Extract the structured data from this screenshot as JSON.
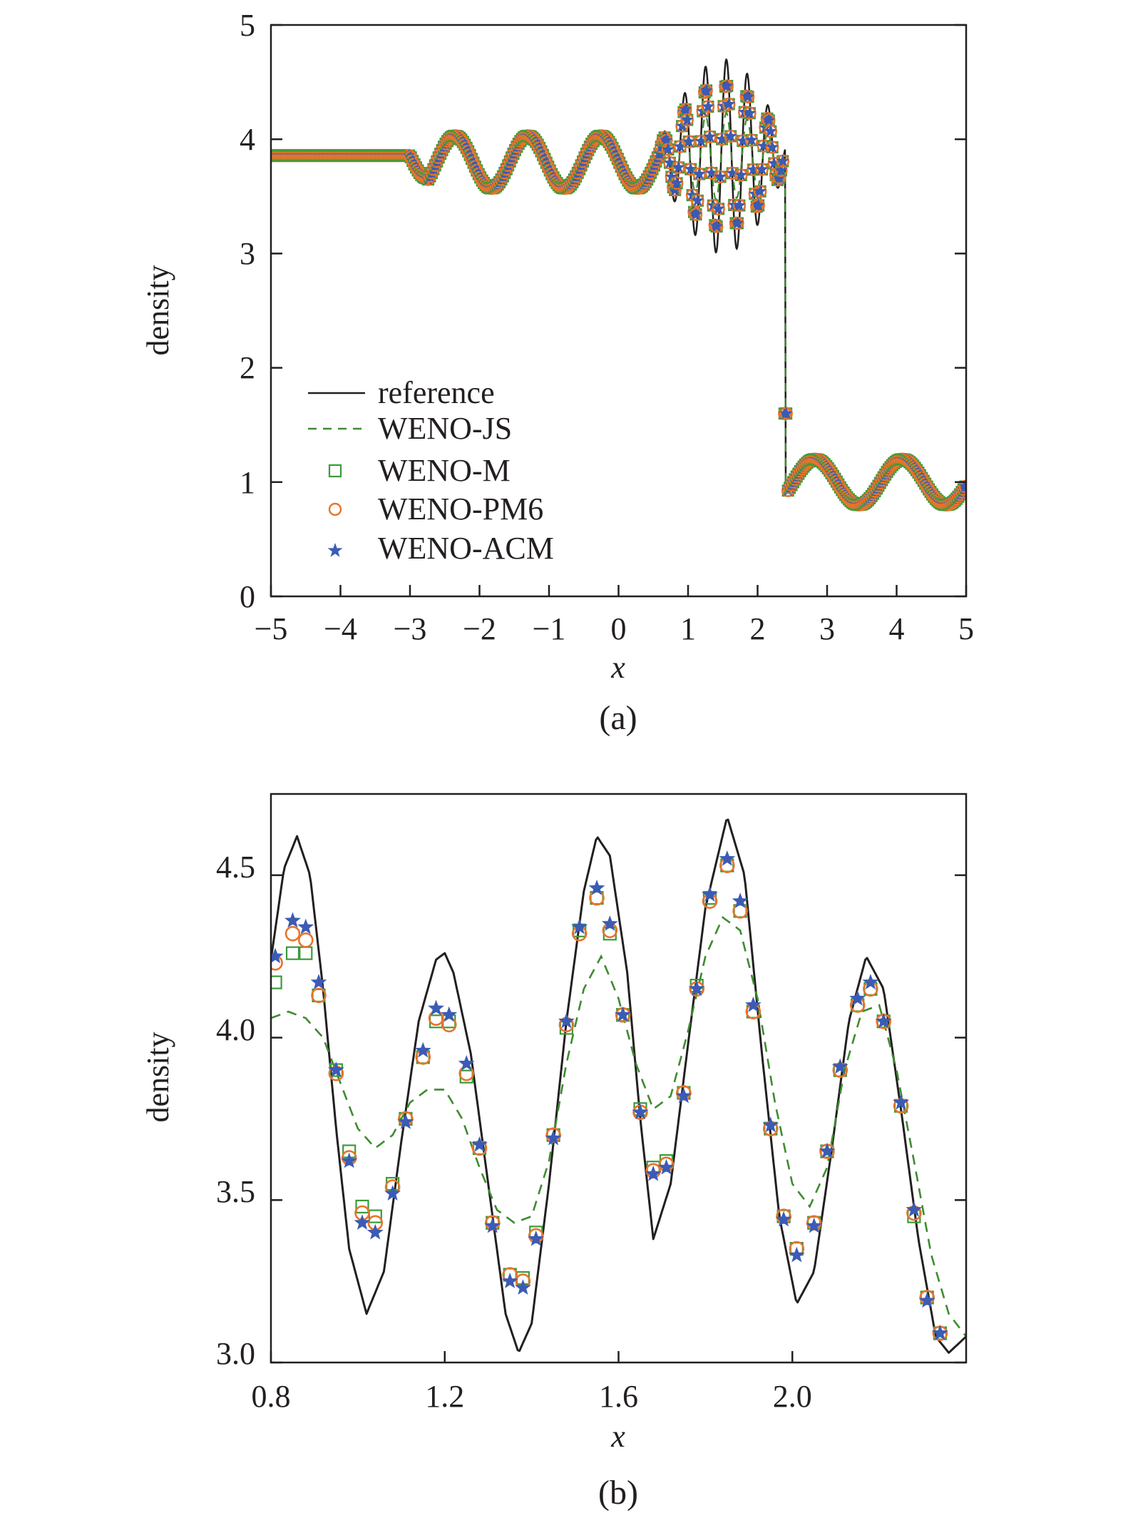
{
  "chart_data": [
    {
      "type": "line",
      "panel": "a",
      "caption": "(a)",
      "xlabel": "x",
      "ylabel": "density",
      "xlim": [
        -5,
        5
      ],
      "ylim": [
        0,
        5
      ],
      "xticks": [
        -5,
        -4,
        -3,
        -2,
        -1,
        0,
        1,
        2,
        3,
        4,
        5
      ],
      "xtick_labels": [
        "−5",
        "−4",
        "−3",
        "−2",
        "−1",
        "0",
        "1",
        "2",
        "3",
        "4",
        "5"
      ],
      "yticks": [
        0,
        1,
        2,
        3,
        4,
        5
      ],
      "ytick_labels": [
        "0",
        "1",
        "2",
        "3",
        "4",
        "5"
      ],
      "legend_position": "lower-left",
      "series": [
        {
          "name": "reference",
          "style": "solid-line",
          "color": "#231f20"
        },
        {
          "name": "WENO-JS",
          "style": "dashed-line",
          "color": "#3d8c2f"
        },
        {
          "name": "WENO-M",
          "style": "square-markers",
          "color": "#3a9b3a"
        },
        {
          "name": "WENO-PM6",
          "style": "circle-markers",
          "color": "#e8742a"
        },
        {
          "name": "WENO-ACM",
          "style": "star-markers",
          "color": "#3b5bb5"
        }
      ],
      "profile": {
        "left_state": 3.857,
        "shock_position": 2.4,
        "right_state_formula": "1 + 0.2*sin(5x)",
        "smooth_region": [
          -3,
          0.6
        ],
        "high_frequency_region": [
          0.6,
          2.4
        ]
      }
    },
    {
      "type": "line",
      "panel": "b",
      "caption": "(b)",
      "xlabel": "x",
      "ylabel": "density",
      "xlim": [
        0.8,
        2.4
      ],
      "ylim": [
        3.0,
        4.75
      ],
      "xticks": [
        0.8,
        1.2,
        1.6,
        2.0
      ],
      "xtick_labels": [
        "0.8",
        "1.2",
        "1.6",
        "2.0"
      ],
      "yticks": [
        3.0,
        3.5,
        4.0,
        4.5
      ],
      "ytick_labels": [
        "3.0",
        "3.5",
        "4.0",
        "4.5"
      ],
      "series": [
        {
          "name": "reference",
          "x": [
            0.8,
            0.83,
            0.86,
            0.89,
            0.92,
            0.95,
            0.98,
            1.02,
            1.06,
            1.1,
            1.14,
            1.18,
            1.2,
            1.22,
            1.26,
            1.3,
            1.34,
            1.37,
            1.4,
            1.44,
            1.48,
            1.52,
            1.55,
            1.58,
            1.62,
            1.65,
            1.68,
            1.72,
            1.76,
            1.8,
            1.85,
            1.89,
            1.93,
            1.97,
            2.01,
            2.05,
            2.09,
            2.13,
            2.17,
            2.21,
            2.25,
            2.29,
            2.33,
            2.36,
            2.4
          ],
          "y": [
            4.24,
            4.52,
            4.62,
            4.5,
            4.15,
            3.72,
            3.35,
            3.15,
            3.28,
            3.68,
            4.05,
            4.24,
            4.26,
            4.2,
            3.95,
            3.55,
            3.15,
            3.03,
            3.12,
            3.55,
            4.05,
            4.45,
            4.62,
            4.56,
            4.2,
            3.75,
            3.38,
            3.55,
            3.98,
            4.4,
            4.68,
            4.5,
            3.95,
            3.45,
            3.18,
            3.28,
            3.65,
            4.05,
            4.25,
            4.15,
            3.78,
            3.38,
            3.08,
            3.03,
            3.08
          ]
        },
        {
          "name": "WENO-JS",
          "x": [
            0.8,
            0.84,
            0.88,
            0.92,
            0.96,
            1.0,
            1.04,
            1.08,
            1.12,
            1.16,
            1.2,
            1.24,
            1.28,
            1.32,
            1.36,
            1.4,
            1.44,
            1.48,
            1.52,
            1.56,
            1.6,
            1.64,
            1.68,
            1.72,
            1.76,
            1.8,
            1.84,
            1.88,
            1.92,
            1.96,
            2.0,
            2.04,
            2.08,
            2.12,
            2.16,
            2.2,
            2.24,
            2.28,
            2.32,
            2.36,
            2.4
          ],
          "y": [
            4.06,
            4.08,
            4.06,
            4.0,
            3.86,
            3.72,
            3.66,
            3.7,
            3.8,
            3.84,
            3.84,
            3.75,
            3.6,
            3.47,
            3.43,
            3.45,
            3.62,
            3.92,
            4.15,
            4.25,
            4.12,
            3.92,
            3.78,
            3.82,
            4.02,
            4.25,
            4.37,
            4.33,
            4.12,
            3.8,
            3.55,
            3.48,
            3.6,
            3.9,
            4.08,
            4.1,
            3.9,
            3.62,
            3.33,
            3.15,
            3.08
          ]
        },
        {
          "name": "WENO-M",
          "x": [
            0.81,
            0.85,
            0.88,
            0.91,
            0.95,
            0.98,
            1.01,
            1.04,
            1.08,
            1.11,
            1.15,
            1.18,
            1.21,
            1.25,
            1.28,
            1.31,
            1.35,
            1.38,
            1.41,
            1.45,
            1.48,
            1.51,
            1.55,
            1.58,
            1.61,
            1.65,
            1.68,
            1.71,
            1.75,
            1.78,
            1.81,
            1.85,
            1.88,
            1.91,
            1.95,
            1.98,
            2.01,
            2.05,
            2.08,
            2.11,
            2.15,
            2.18,
            2.21,
            2.25,
            2.28,
            2.31,
            2.34
          ],
          "y": [
            4.17,
            4.26,
            4.26,
            4.13,
            3.9,
            3.65,
            3.48,
            3.45,
            3.55,
            3.75,
            3.94,
            4.05,
            4.05,
            3.88,
            3.66,
            3.43,
            3.27,
            3.26,
            3.4,
            3.7,
            4.03,
            4.33,
            4.43,
            4.32,
            4.07,
            3.78,
            3.6,
            3.62,
            3.83,
            4.16,
            4.43,
            4.53,
            4.39,
            4.08,
            3.72,
            3.45,
            3.35,
            3.43,
            3.65,
            3.9,
            4.1,
            4.15,
            4.05,
            3.79,
            3.45,
            3.2,
            3.09
          ]
        },
        {
          "name": "WENO-PM6",
          "x": [
            0.81,
            0.85,
            0.88,
            0.91,
            0.95,
            0.98,
            1.01,
            1.04,
            1.08,
            1.11,
            1.15,
            1.18,
            1.21,
            1.25,
            1.28,
            1.31,
            1.35,
            1.38,
            1.41,
            1.45,
            1.48,
            1.51,
            1.55,
            1.58,
            1.61,
            1.65,
            1.68,
            1.71,
            1.75,
            1.78,
            1.81,
            1.85,
            1.88,
            1.91,
            1.95,
            1.98,
            2.01,
            2.05,
            2.08,
            2.11,
            2.15,
            2.18,
            2.21,
            2.25,
            2.28,
            2.31,
            2.34
          ],
          "y": [
            4.23,
            4.32,
            4.3,
            4.13,
            3.89,
            3.63,
            3.46,
            3.43,
            3.54,
            3.75,
            3.94,
            4.06,
            4.04,
            3.89,
            3.66,
            3.43,
            3.27,
            3.25,
            3.39,
            3.7,
            4.04,
            4.32,
            4.43,
            4.33,
            4.07,
            3.77,
            3.59,
            3.61,
            3.83,
            4.15,
            4.42,
            4.53,
            4.39,
            4.08,
            3.72,
            3.45,
            3.35,
            3.43,
            3.65,
            3.9,
            4.1,
            4.15,
            4.05,
            3.79,
            3.46,
            3.2,
            3.09
          ]
        },
        {
          "name": "WENO-ACM",
          "x": [
            0.81,
            0.85,
            0.88,
            0.91,
            0.95,
            0.98,
            1.01,
            1.04,
            1.08,
            1.11,
            1.15,
            1.18,
            1.21,
            1.25,
            1.28,
            1.31,
            1.35,
            1.38,
            1.41,
            1.45,
            1.48,
            1.51,
            1.55,
            1.58,
            1.61,
            1.65,
            1.68,
            1.71,
            1.75,
            1.78,
            1.81,
            1.85,
            1.88,
            1.91,
            1.95,
            1.98,
            2.01,
            2.05,
            2.08,
            2.11,
            2.15,
            2.18,
            2.21,
            2.25,
            2.28,
            2.31,
            2.34
          ],
          "y": [
            4.25,
            4.36,
            4.34,
            4.17,
            3.9,
            3.62,
            3.43,
            3.4,
            3.52,
            3.74,
            3.96,
            4.09,
            4.07,
            3.92,
            3.67,
            3.42,
            3.25,
            3.23,
            3.38,
            3.69,
            4.05,
            4.34,
            4.46,
            4.35,
            4.07,
            3.77,
            3.58,
            3.6,
            3.82,
            4.15,
            4.44,
            4.55,
            4.42,
            4.1,
            3.73,
            3.44,
            3.33,
            3.42,
            3.65,
            3.91,
            4.12,
            4.17,
            4.05,
            3.8,
            3.47,
            3.19,
            3.09
          ]
        }
      ]
    }
  ]
}
